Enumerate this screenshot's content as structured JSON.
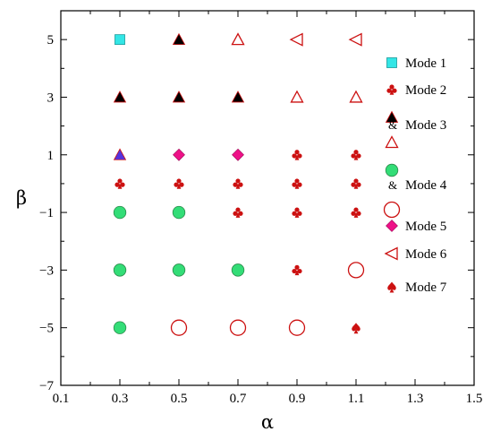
{
  "chart_data": {
    "type": "scatter",
    "xlabel": "α",
    "ylabel": "β",
    "xlim": [
      0.1,
      1.5
    ],
    "ylim": [
      -7,
      6
    ],
    "x_ticks": [
      "0.1",
      "0.3",
      "0.5",
      "0.7",
      "0.9",
      "1.1",
      "1.3",
      "1.5"
    ],
    "y_ticks": [
      "−7",
      "−5",
      "−3",
      "−1",
      "1",
      "3",
      "5"
    ],
    "grid": false,
    "legend_position": "right",
    "colors": {
      "cyan": "#33e6e6",
      "red": "#cc1111",
      "black": "#000000",
      "purple": "#5533dd",
      "green": "#33dd77",
      "magenta": "#ee1188"
    },
    "legend": [
      {
        "text": "Mode 1",
        "markers": [
          "cyan-square"
        ]
      },
      {
        "text": "Mode 2",
        "markers": [
          "red-club"
        ]
      },
      {
        "text": "Mode 3",
        "markers": [
          "black-triangle",
          "red-open-triangle"
        ],
        "joiner": "&"
      },
      {
        "text": "Mode 4",
        "markers": [
          "green-circle",
          "red-open-circle"
        ],
        "joiner": "&"
      },
      {
        "text": "Mode 5",
        "markers": [
          "magenta-diamond"
        ]
      },
      {
        "text": "Mode 6",
        "markers": [
          "red-open-left-triangle"
        ]
      },
      {
        "text": "Mode 7",
        "markers": [
          "red-spade"
        ]
      }
    ],
    "points": [
      {
        "x": 0.3,
        "y": 5,
        "marker": "cyan-square"
      },
      {
        "x": 0.5,
        "y": 5,
        "marker": "black-triangle"
      },
      {
        "x": 0.7,
        "y": 5,
        "marker": "red-open-triangle"
      },
      {
        "x": 0.9,
        "y": 5,
        "marker": "red-open-left-triangle"
      },
      {
        "x": 1.1,
        "y": 5,
        "marker": "red-open-left-triangle"
      },
      {
        "x": 0.3,
        "y": 3,
        "marker": "black-triangle"
      },
      {
        "x": 0.5,
        "y": 3,
        "marker": "black-triangle"
      },
      {
        "x": 0.7,
        "y": 3,
        "marker": "black-triangle"
      },
      {
        "x": 0.9,
        "y": 3,
        "marker": "red-open-triangle"
      },
      {
        "x": 1.1,
        "y": 3,
        "marker": "red-open-triangle"
      },
      {
        "x": 0.3,
        "y": 1,
        "marker": "purple-triangle"
      },
      {
        "x": 0.5,
        "y": 1,
        "marker": "magenta-diamond"
      },
      {
        "x": 0.7,
        "y": 1,
        "marker": "magenta-diamond"
      },
      {
        "x": 0.9,
        "y": 1,
        "marker": "red-club"
      },
      {
        "x": 1.1,
        "y": 1,
        "marker": "red-club"
      },
      {
        "x": 0.3,
        "y": 0,
        "marker": "red-club"
      },
      {
        "x": 0.5,
        "y": 0,
        "marker": "red-club"
      },
      {
        "x": 0.7,
        "y": 0,
        "marker": "red-club"
      },
      {
        "x": 0.9,
        "y": 0,
        "marker": "red-club"
      },
      {
        "x": 1.1,
        "y": 0,
        "marker": "red-club"
      },
      {
        "x": 0.3,
        "y": -1,
        "marker": "green-circle"
      },
      {
        "x": 0.5,
        "y": -1,
        "marker": "green-circle"
      },
      {
        "x": 0.7,
        "y": -1,
        "marker": "red-club"
      },
      {
        "x": 0.9,
        "y": -1,
        "marker": "red-club"
      },
      {
        "x": 1.1,
        "y": -1,
        "marker": "red-club"
      },
      {
        "x": 0.3,
        "y": -3,
        "marker": "green-circle"
      },
      {
        "x": 0.5,
        "y": -3,
        "marker": "green-circle"
      },
      {
        "x": 0.7,
        "y": -3,
        "marker": "green-circle"
      },
      {
        "x": 0.9,
        "y": -3,
        "marker": "red-club"
      },
      {
        "x": 1.1,
        "y": -3,
        "marker": "red-open-circle"
      },
      {
        "x": 0.3,
        "y": -5,
        "marker": "green-circle"
      },
      {
        "x": 0.5,
        "y": -5,
        "marker": "red-open-circle"
      },
      {
        "x": 0.7,
        "y": -5,
        "marker": "red-open-circle"
      },
      {
        "x": 0.9,
        "y": -5,
        "marker": "red-open-circle"
      },
      {
        "x": 1.1,
        "y": -5,
        "marker": "red-spade"
      }
    ]
  }
}
